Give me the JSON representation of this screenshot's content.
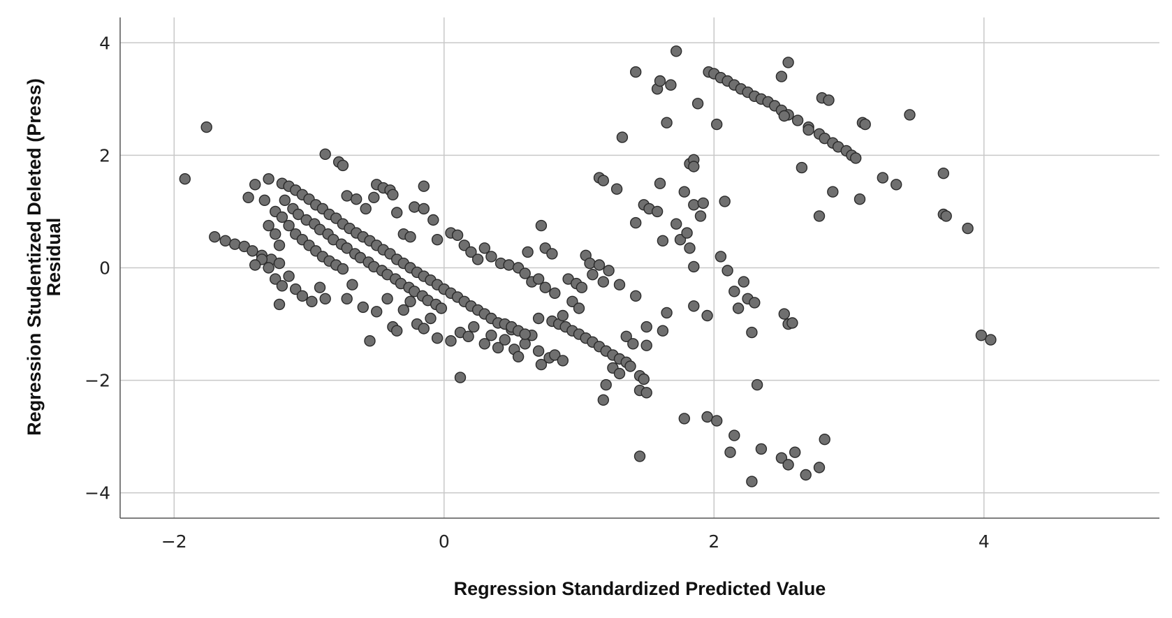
{
  "chart_data": {
    "type": "scatter",
    "title": "",
    "xlabel": "Regression Standardized Predicted Value",
    "ylabel_lines": [
      "Regression Studentized Deleted (Press)",
      "Residual"
    ],
    "xlim": [
      -2.4,
      5.3
    ],
    "ylim": [
      -4.45,
      4.45
    ],
    "xticks": [
      -2,
      0,
      2,
      4
    ],
    "yticks": [
      -4,
      -2,
      0,
      2,
      4
    ],
    "xtick_labels": [
      "−2",
      "0",
      "2",
      "4"
    ],
    "ytick_labels": [
      "−4",
      "−2",
      "0",
      "2",
      "4"
    ],
    "grid": true,
    "marker_color": "#6f6f6f",
    "marker_edge_color": "#2a2a2a",
    "series": [
      {
        "points": [
          [
            -1.92,
            1.58
          ],
          [
            -1.76,
            2.5
          ],
          [
            -1.7,
            0.55
          ],
          [
            -1.62,
            0.48
          ],
          [
            -1.55,
            0.42
          ],
          [
            -1.48,
            0.38
          ],
          [
            -1.42,
            0.3
          ],
          [
            -1.35,
            0.22
          ],
          [
            -1.28,
            0.15
          ],
          [
            -1.22,
            0.08
          ],
          [
            -1.45,
            1.25
          ],
          [
            -1.4,
            1.48
          ],
          [
            -1.33,
            1.2
          ],
          [
            -1.3,
            1.58
          ],
          [
            -1.25,
            1.0
          ],
          [
            -1.2,
            1.5
          ],
          [
            -1.15,
            1.45
          ],
          [
            -1.1,
            1.38
          ],
          [
            -1.05,
            1.3
          ],
          [
            -1.0,
            1.22
          ],
          [
            -0.95,
            1.12
          ],
          [
            -0.9,
            1.05
          ],
          [
            -0.85,
            0.95
          ],
          [
            -0.8,
            0.88
          ],
          [
            -0.75,
            0.78
          ],
          [
            -0.7,
            0.7
          ],
          [
            -0.65,
            0.62
          ],
          [
            -0.6,
            0.55
          ],
          [
            -0.55,
            0.48
          ],
          [
            -0.5,
            0.4
          ],
          [
            -0.45,
            0.32
          ],
          [
            -0.4,
            0.25
          ],
          [
            -0.35,
            0.15
          ],
          [
            -0.3,
            0.08
          ],
          [
            -0.25,
            0.0
          ],
          [
            -0.2,
            -0.08
          ],
          [
            -0.15,
            -0.15
          ],
          [
            -0.1,
            -0.22
          ],
          [
            -0.05,
            -0.3
          ],
          [
            0.0,
            -0.38
          ],
          [
            0.05,
            -0.45
          ],
          [
            0.1,
            -0.52
          ],
          [
            0.15,
            -0.6
          ],
          [
            0.2,
            -0.68
          ],
          [
            0.25,
            -0.75
          ],
          [
            0.3,
            -0.82
          ],
          [
            0.35,
            -0.9
          ],
          [
            0.4,
            -0.98
          ],
          [
            -1.18,
            1.2
          ],
          [
            -1.12,
            1.05
          ],
          [
            -1.08,
            0.95
          ],
          [
            -1.02,
            0.85
          ],
          [
            -0.96,
            0.78
          ],
          [
            -0.92,
            0.68
          ],
          [
            -0.86,
            0.6
          ],
          [
            -0.82,
            0.5
          ],
          [
            -0.76,
            0.42
          ],
          [
            -0.72,
            0.35
          ],
          [
            -0.66,
            0.25
          ],
          [
            -0.62,
            0.18
          ],
          [
            -0.56,
            0.1
          ],
          [
            -0.52,
            0.02
          ],
          [
            -0.46,
            -0.05
          ],
          [
            -0.42,
            -0.12
          ],
          [
            -0.36,
            -0.2
          ],
          [
            -0.32,
            -0.28
          ],
          [
            -0.26,
            -0.35
          ],
          [
            -0.22,
            -0.42
          ],
          [
            -0.16,
            -0.5
          ],
          [
            -0.12,
            -0.58
          ],
          [
            -0.06,
            -0.65
          ],
          [
            -0.02,
            -0.72
          ],
          [
            -1.2,
            0.9
          ],
          [
            -1.15,
            0.75
          ],
          [
            -1.1,
            0.6
          ],
          [
            -1.05,
            0.5
          ],
          [
            -1.0,
            0.4
          ],
          [
            -0.95,
            0.3
          ],
          [
            -0.9,
            0.2
          ],
          [
            -0.85,
            0.12
          ],
          [
            -0.8,
            0.05
          ],
          [
            -0.75,
            -0.02
          ],
          [
            -1.3,
            0.75
          ],
          [
            -1.25,
            0.6
          ],
          [
            -1.22,
            0.4
          ],
          [
            -1.3,
            0.0
          ],
          [
            -1.35,
            0.15
          ],
          [
            -1.4,
            0.05
          ],
          [
            -1.25,
            -0.2
          ],
          [
            -1.2,
            -0.32
          ],
          [
            -1.15,
            -0.15
          ],
          [
            -1.1,
            -0.38
          ],
          [
            -1.22,
            -0.65
          ],
          [
            -1.05,
            -0.5
          ],
          [
            -0.98,
            -0.6
          ],
          [
            -0.92,
            -0.35
          ],
          [
            -0.88,
            -0.55
          ],
          [
            -0.88,
            2.02
          ],
          [
            -0.78,
            1.88
          ],
          [
            -0.75,
            1.82
          ],
          [
            -0.72,
            1.28
          ],
          [
            -0.65,
            1.22
          ],
          [
            -0.58,
            1.05
          ],
          [
            -0.52,
            1.25
          ],
          [
            -0.5,
            1.48
          ],
          [
            -0.45,
            1.42
          ],
          [
            -0.4,
            1.38
          ],
          [
            -0.38,
            1.3
          ],
          [
            -0.35,
            0.98
          ],
          [
            -0.3,
            0.6
          ],
          [
            -0.25,
            0.55
          ],
          [
            -0.22,
            1.08
          ],
          [
            -0.15,
            1.05
          ],
          [
            -0.15,
            1.45
          ],
          [
            -0.08,
            0.85
          ],
          [
            -0.05,
            0.5
          ],
          [
            -0.72,
            -0.55
          ],
          [
            -0.68,
            -0.3
          ],
          [
            -0.6,
            -0.7
          ],
          [
            -0.55,
            -1.3
          ],
          [
            -0.5,
            -0.78
          ],
          [
            -0.42,
            -0.55
          ],
          [
            -0.38,
            -1.05
          ],
          [
            -0.35,
            -1.12
          ],
          [
            -0.3,
            -0.75
          ],
          [
            -0.25,
            -0.6
          ],
          [
            -0.2,
            -1.0
          ],
          [
            -0.15,
            -1.08
          ],
          [
            -0.05,
            -1.25
          ],
          [
            -0.1,
            -0.9
          ],
          [
            0.05,
            0.62
          ],
          [
            0.1,
            0.58
          ],
          [
            0.15,
            0.4
          ],
          [
            0.2,
            0.28
          ],
          [
            0.25,
            0.15
          ],
          [
            0.3,
            0.35
          ],
          [
            0.35,
            0.2
          ],
          [
            0.42,
            0.08
          ],
          [
            0.48,
            0.05
          ],
          [
            0.55,
            0.0
          ],
          [
            0.6,
            -0.1
          ],
          [
            0.65,
            -0.25
          ],
          [
            0.7,
            -0.2
          ],
          [
            0.75,
            -0.35
          ],
          [
            0.82,
            -0.45
          ],
          [
            0.05,
            -1.3
          ],
          [
            0.12,
            -1.15
          ],
          [
            0.18,
            -1.22
          ],
          [
            0.22,
            -1.05
          ],
          [
            0.3,
            -1.35
          ],
          [
            0.35,
            -1.2
          ],
          [
            0.4,
            -1.42
          ],
          [
            0.45,
            -1.28
          ],
          [
            0.5,
            -1.1
          ],
          [
            0.52,
            -1.45
          ],
          [
            0.55,
            -1.58
          ],
          [
            0.6,
            -1.35
          ],
          [
            0.65,
            -1.2
          ],
          [
            0.7,
            -1.48
          ],
          [
            0.72,
            -1.72
          ],
          [
            0.78,
            -1.6
          ],
          [
            0.82,
            -1.55
          ],
          [
            0.88,
            -1.65
          ],
          [
            0.12,
            -1.95
          ],
          [
            0.45,
            -1.0
          ],
          [
            0.5,
            -1.05
          ],
          [
            0.55,
            -1.12
          ],
          [
            0.6,
            -1.18
          ],
          [
            0.7,
            -0.9
          ],
          [
            0.8,
            -0.95
          ],
          [
            0.85,
            -1.0
          ],
          [
            0.9,
            -1.05
          ],
          [
            0.95,
            -1.12
          ],
          [
            1.0,
            -1.18
          ],
          [
            1.05,
            -1.25
          ],
          [
            1.1,
            -1.32
          ],
          [
            1.15,
            -1.4
          ],
          [
            1.2,
            -1.48
          ],
          [
            1.25,
            -1.55
          ],
          [
            1.3,
            -1.62
          ],
          [
            1.35,
            -1.68
          ],
          [
            1.38,
            -1.75
          ],
          [
            0.62,
            0.28
          ],
          [
            0.72,
            0.75
          ],
          [
            0.75,
            0.35
          ],
          [
            0.8,
            0.25
          ],
          [
            0.92,
            -0.2
          ],
          [
            0.98,
            -0.28
          ],
          [
            1.02,
            -0.35
          ],
          [
            0.95,
            -0.6
          ],
          [
            1.0,
            -0.72
          ],
          [
            0.88,
            -0.85
          ],
          [
            1.05,
            0.22
          ],
          [
            1.08,
            0.08
          ],
          [
            1.15,
            0.05
          ],
          [
            1.22,
            -0.05
          ],
          [
            1.1,
            -0.12
          ],
          [
            1.18,
            -0.25
          ],
          [
            1.3,
            -0.3
          ],
          [
            1.35,
            -1.22
          ],
          [
            1.4,
            -1.35
          ],
          [
            1.15,
            1.6
          ],
          [
            1.18,
            1.55
          ],
          [
            1.28,
            1.4
          ],
          [
            1.32,
            2.32
          ],
          [
            1.42,
            3.48
          ],
          [
            1.42,
            0.8
          ],
          [
            1.48,
            1.12
          ],
          [
            1.52,
            1.05
          ],
          [
            1.58,
            1.0
          ],
          [
            1.6,
            1.5
          ],
          [
            1.58,
            3.18
          ],
          [
            1.6,
            3.32
          ],
          [
            1.62,
            0.48
          ],
          [
            1.65,
            2.58
          ],
          [
            1.68,
            3.25
          ],
          [
            1.72,
            3.85
          ],
          [
            1.72,
            0.78
          ],
          [
            1.75,
            0.5
          ],
          [
            1.2,
            -2.08
          ],
          [
            1.18,
            -2.35
          ],
          [
            1.25,
            -1.78
          ],
          [
            1.3,
            -1.88
          ],
          [
            1.45,
            -1.92
          ],
          [
            1.48,
            -1.98
          ],
          [
            1.45,
            -2.18
          ],
          [
            1.5,
            -2.22
          ],
          [
            1.45,
            -3.35
          ],
          [
            1.42,
            -0.5
          ],
          [
            1.5,
            -1.38
          ],
          [
            1.62,
            -1.12
          ],
          [
            1.65,
            -0.8
          ],
          [
            1.5,
            -1.05
          ],
          [
            1.78,
            1.35
          ],
          [
            1.8,
            0.62
          ],
          [
            1.82,
            0.35
          ],
          [
            1.82,
            1.85
          ],
          [
            1.85,
            1.92
          ],
          [
            1.85,
            1.8
          ],
          [
            1.85,
            1.12
          ],
          [
            1.88,
            2.92
          ],
          [
            1.9,
            0.92
          ],
          [
            1.92,
            1.15
          ],
          [
            1.85,
            0.02
          ],
          [
            1.85,
            -0.68
          ],
          [
            1.95,
            -0.85
          ],
          [
            1.78,
            -2.68
          ],
          [
            1.95,
            -2.65
          ],
          [
            2.02,
            -2.72
          ],
          [
            1.96,
            3.48
          ],
          [
            2.0,
            3.45
          ],
          [
            2.05,
            3.38
          ],
          [
            2.1,
            3.32
          ],
          [
            2.15,
            3.25
          ],
          [
            2.2,
            3.18
          ],
          [
            2.25,
            3.12
          ],
          [
            2.3,
            3.05
          ],
          [
            2.35,
            3.0
          ],
          [
            2.4,
            2.95
          ],
          [
            2.45,
            2.88
          ],
          [
            2.5,
            2.8
          ],
          [
            2.55,
            2.72
          ],
          [
            2.62,
            2.62
          ],
          [
            2.7,
            2.5
          ],
          [
            2.78,
            2.38
          ],
          [
            2.82,
            2.3
          ],
          [
            2.88,
            2.22
          ],
          [
            2.92,
            2.15
          ],
          [
            2.98,
            2.08
          ],
          [
            3.02,
            2.0
          ],
          [
            3.05,
            1.95
          ],
          [
            2.02,
            2.55
          ],
          [
            2.05,
            0.2
          ],
          [
            2.1,
            -0.05
          ],
          [
            2.08,
            1.18
          ],
          [
            2.15,
            -0.42
          ],
          [
            2.18,
            -0.72
          ],
          [
            2.22,
            -0.25
          ],
          [
            2.25,
            -0.55
          ],
          [
            2.3,
            -0.62
          ],
          [
            2.28,
            -1.15
          ],
          [
            2.32,
            -2.08
          ],
          [
            2.15,
            -2.98
          ],
          [
            2.12,
            -3.28
          ],
          [
            2.35,
            -3.22
          ],
          [
            2.28,
            -3.8
          ],
          [
            2.5,
            3.4
          ],
          [
            2.55,
            3.65
          ],
          [
            2.52,
            2.7
          ],
          [
            2.65,
            1.78
          ],
          [
            2.7,
            2.45
          ],
          [
            2.78,
            0.92
          ],
          [
            2.8,
            3.02
          ],
          [
            2.85,
            2.98
          ],
          [
            2.88,
            1.35
          ],
          [
            3.08,
            1.22
          ],
          [
            3.1,
            2.58
          ],
          [
            3.12,
            2.55
          ],
          [
            2.52,
            -0.82
          ],
          [
            2.55,
            -1.0
          ],
          [
            2.58,
            -0.98
          ],
          [
            2.5,
            -3.38
          ],
          [
            2.55,
            -3.5
          ],
          [
            2.6,
            -3.28
          ],
          [
            2.68,
            -3.68
          ],
          [
            2.78,
            -3.55
          ],
          [
            2.82,
            -3.05
          ],
          [
            3.25,
            1.6
          ],
          [
            3.35,
            1.48
          ],
          [
            3.45,
            2.72
          ],
          [
            3.7,
            1.68
          ],
          [
            3.7,
            0.95
          ],
          [
            3.72,
            0.92
          ],
          [
            3.88,
            0.7
          ],
          [
            3.98,
            -1.2
          ],
          [
            4.05,
            -1.28
          ]
        ]
      }
    ]
  }
}
